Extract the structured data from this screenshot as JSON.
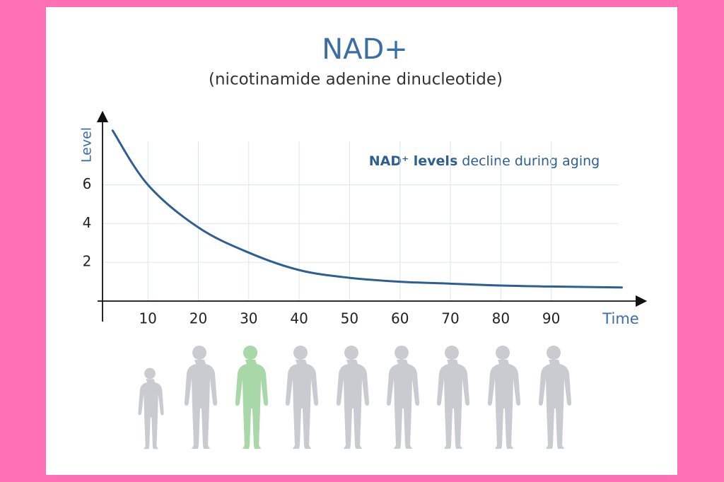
{
  "chart_data": {
    "type": "line",
    "title": "NAD+",
    "subtitle": "(nicotinamide adenine dinucleotide)",
    "annotation": {
      "emphasis": "NAD⁺ levels",
      "rest": "decline during aging"
    },
    "x_label": "Time",
    "y_label": "Level",
    "x": [
      3,
      10,
      20,
      30,
      40,
      50,
      60,
      70,
      80,
      90,
      104
    ],
    "values": [
      8.8,
      6.0,
      3.8,
      2.5,
      1.6,
      1.2,
      1.0,
      0.9,
      0.8,
      0.75,
      0.7
    ],
    "color": "#2d5f93",
    "xlim": [
      1,
      108
    ],
    "ylim": [
      0,
      9.7
    ],
    "xticks": [
      10,
      20,
      30,
      40,
      50,
      60,
      70,
      80,
      90
    ],
    "yticks": [
      2,
      4,
      6
    ],
    "grid": true
  }
}
